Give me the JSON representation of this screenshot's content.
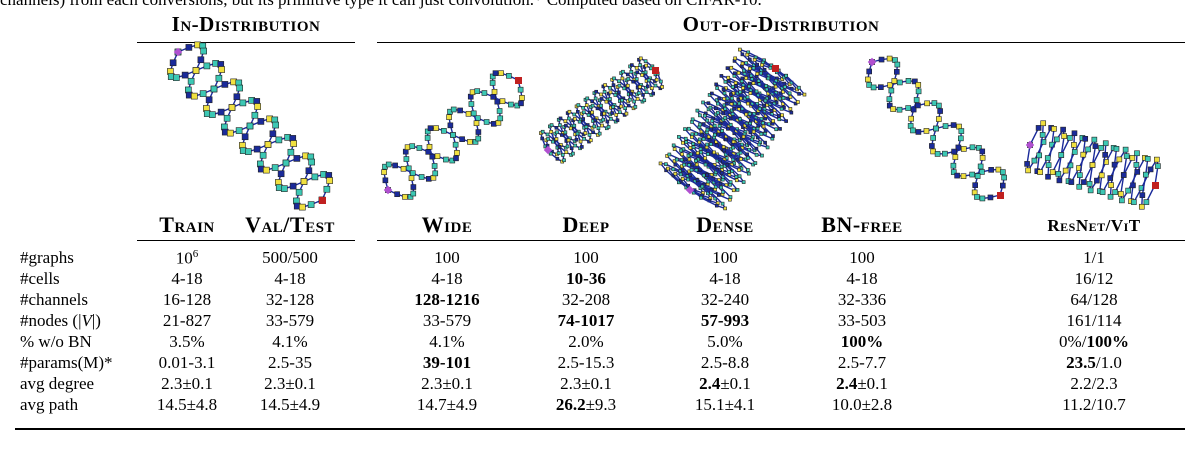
{
  "caption_fragment": "channels) from each conversions, but its primitive type it can just convolution.* Computed based on CIFAR-10.",
  "groups": [
    "In-Distribution",
    "Out-of-Distribution"
  ],
  "columns": [
    "Train",
    "Val/Test",
    "Wide",
    "Deep",
    "Dense",
    "BN-free",
    "ResNet/ViT"
  ],
  "rows": [
    {
      "label": [
        "#graphs"
      ],
      "cells": [
        [
          "10",
          {
            "sup": "6"
          }
        ],
        [
          "500/500"
        ],
        [
          "100"
        ],
        [
          "100"
        ],
        [
          "100"
        ],
        [
          "100"
        ],
        [
          "1/1"
        ]
      ]
    },
    {
      "label": [
        "#cells"
      ],
      "cells": [
        [
          "4-18"
        ],
        [
          "4-18"
        ],
        [
          "4-18"
        ],
        [
          {
            "bold": "10-36"
          }
        ],
        [
          "4-18"
        ],
        [
          "4-18"
        ],
        [
          "16/12"
        ]
      ]
    },
    {
      "label": [
        "#channels"
      ],
      "cells": [
        [
          "16-128"
        ],
        [
          "32-128"
        ],
        [
          {
            "bold": "128-1216"
          }
        ],
        [
          "32-208"
        ],
        [
          "32-240"
        ],
        [
          "32-336"
        ],
        [
          "64/128"
        ]
      ]
    },
    {
      "label": [
        "#nodes (|",
        {
          "italic": "V"
        },
        "|)"
      ],
      "cells": [
        [
          "21-827"
        ],
        [
          "33-579"
        ],
        [
          "33-579"
        ],
        [
          {
            "bold": "74-1017"
          }
        ],
        [
          {
            "bold": "57-993"
          }
        ],
        [
          "33-503"
        ],
        [
          "161/114"
        ]
      ]
    },
    {
      "label": [
        "% w/o BN"
      ],
      "cells": [
        [
          "3.5%"
        ],
        [
          "4.1%"
        ],
        [
          "4.1%"
        ],
        [
          "2.0%"
        ],
        [
          "5.0%"
        ],
        [
          {
            "bold": "100%"
          }
        ],
        [
          "0%/",
          {
            "bold": "100%"
          }
        ]
      ]
    },
    {
      "label": [
        "#params(M)*"
      ],
      "cells": [
        [
          "0.01-3.1"
        ],
        [
          "2.5-35"
        ],
        [
          {
            "bold": "39-101"
          }
        ],
        [
          "2.5-15.3"
        ],
        [
          "2.5-8.8"
        ],
        [
          "2.5-7.7"
        ],
        [
          {
            "bold": "23.5"
          },
          "/1.0"
        ]
      ]
    },
    {
      "label": [
        "avg degree"
      ],
      "cells": [
        [
          "2.3±0.1"
        ],
        [
          "2.3±0.1"
        ],
        [
          "2.3±0.1"
        ],
        [
          "2.3±0.1"
        ],
        [
          {
            "bold": "2.4"
          },
          "±0.1"
        ],
        [
          {
            "bold": "2.4"
          },
          "±0.1"
        ],
        [
          "2.2/2.3"
        ]
      ]
    },
    {
      "label": [
        "avg path"
      ],
      "cells": [
        [
          "14.5±4.8"
        ],
        [
          "14.5±4.9"
        ],
        [
          "14.7±4.9"
        ],
        [
          {
            "bold": "26.2"
          },
          "±9.3"
        ],
        [
          "15.1±4.1"
        ],
        [
          "10.0±2.8"
        ],
        [
          "11.2/10.7"
        ]
      ]
    }
  ]
}
